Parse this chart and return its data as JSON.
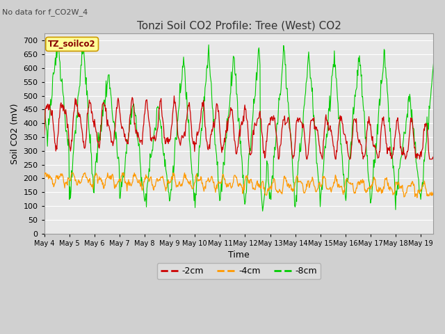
{
  "title": "Tonzi Soil CO2 Profile: Tree (West) CO2",
  "subtitle": "No data for f_CO2W_4",
  "ylabel": "Soil CO2 (mV)",
  "xlabel": "Time",
  "legend_label": "TZ_soilco2",
  "ylim": [
    0,
    725
  ],
  "yticks": [
    0,
    50,
    100,
    150,
    200,
    250,
    300,
    350,
    400,
    450,
    500,
    550,
    600,
    650,
    700
  ],
  "xtick_labels": [
    "May 4",
    "May 5",
    "May 6",
    "May 7",
    "May 8",
    "May 9",
    "May 10",
    "May 11",
    "May 12",
    "May 13",
    "May 14",
    "May 15",
    "May 16",
    "May 17",
    "May 18",
    "May 19"
  ],
  "color_2cm": "#cc0000",
  "color_4cm": "#ff9900",
  "color_8cm": "#00cc00",
  "legend_2cm": "-2cm",
  "legend_4cm": "-4cm",
  "legend_8cm": "-8cm",
  "fig_bg_color": "#d0d0d0",
  "plot_bg_color": "#e8e8e8",
  "title_fontsize": 11,
  "axis_fontsize": 9,
  "legend_box_facecolor": "#ffff99",
  "legend_box_edgecolor": "#cc9900",
  "grid_color": "#ffffff"
}
